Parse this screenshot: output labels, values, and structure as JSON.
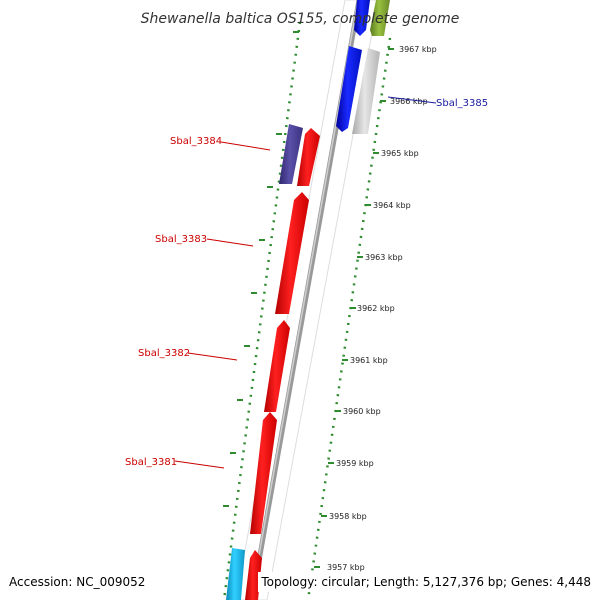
{
  "title": "Shewanella baltica OS155, complete genome",
  "accession": "Accession: NC_009052",
  "topology": "Topology: circular; Length: 5,127,376 bp; Genes: 4,448",
  "colors": {
    "backbone": "#888888",
    "dotted_ring": "#2e8b2e",
    "tick": "#2e8b2e",
    "red_gene": "#ff1a1a",
    "blue_gene": "#0a14e6",
    "purple_gene": "#4a4090",
    "grey_gene": "#c8c8c8",
    "olive_gene": "#7fa030",
    "cyan_gene": "#1ab8e6",
    "label_red": "#cc0000",
    "label_blue": "#1a1aa0"
  },
  "scale_ticks": [
    {
      "kbp": 3967,
      "label": "3967 kbp"
    },
    {
      "kbp": 3966,
      "label": "3966 kbp"
    },
    {
      "kbp": 3965,
      "label": "3965 kbp"
    },
    {
      "kbp": 3964,
      "label": "3964 kbp"
    },
    {
      "kbp": 3963,
      "label": "3963 kbp"
    },
    {
      "kbp": 3962,
      "label": "3962 kbp"
    },
    {
      "kbp": 3961,
      "label": "3961 kbp"
    },
    {
      "kbp": 3960,
      "label": "3960 kbp"
    },
    {
      "kbp": 3959,
      "label": "3959 kbp"
    },
    {
      "kbp": 3958,
      "label": "3958 kbp"
    },
    {
      "kbp": 3957,
      "label": "3957 kbp"
    }
  ],
  "genes": [
    {
      "label": "Sbal_3384"
    },
    {
      "label": "Sbal_3383"
    },
    {
      "label": "Sbal_3382"
    },
    {
      "label": "Sbal_3381"
    },
    {
      "label": "Sbal_3385"
    }
  ]
}
